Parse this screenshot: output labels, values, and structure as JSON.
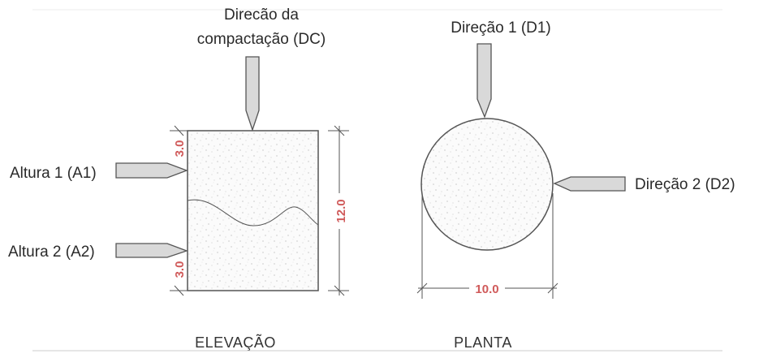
{
  "elevation": {
    "title": "ELEVAÇÃO",
    "compaction_label_line1": "Direcão da",
    "compaction_label_line2": "compactação (DC)",
    "height1_label": "Altura 1 (A1)",
    "height2_label": "Altura 2 (A2)",
    "dim_top": "3.0",
    "dim_bottom": "3.0",
    "dim_total": "12.0"
  },
  "plan": {
    "title": "PLANTA",
    "direction1_label": "Direção 1 (D1)",
    "direction2_label": "Direção 2 (D2)",
    "dim_diameter": "10.0"
  },
  "colors": {
    "dimension_text": "#d05a5a",
    "arrow_fill": "#d9d9d9",
    "line": "#555555"
  }
}
